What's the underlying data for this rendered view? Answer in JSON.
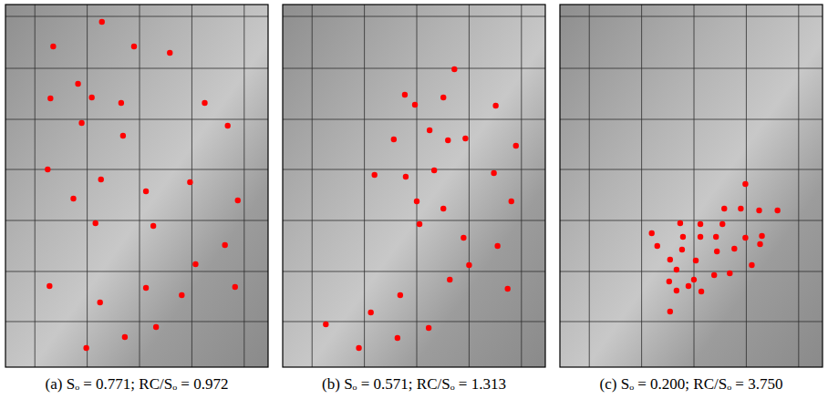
{
  "chart_data": [
    {
      "type": "scatter",
      "title": "(a) Sₒ = 0.771; RC/Sₒ = 0.972",
      "color": "#ff0000",
      "grid": true,
      "tick_labels": false,
      "xlim": [
        0,
        286
      ],
      "ylim": [
        0,
        398
      ],
      "xticks": [
        32,
        89,
        146,
        203,
        260
      ],
      "yticks": [
        13,
        70,
        126,
        181,
        237,
        293,
        348
      ],
      "x": [
        105,
        52,
        140,
        179,
        49,
        79,
        94,
        126,
        217,
        242,
        83,
        128,
        46,
        104,
        201,
        74,
        153,
        253,
        98,
        161,
        239,
        207,
        48,
        153,
        250,
        192,
        103,
        164,
        130,
        88
      ],
      "y": [
        19,
        46,
        46,
        53,
        103,
        87,
        102,
        108,
        108,
        133,
        130,
        144,
        181,
        192,
        195,
        213,
        205,
        215,
        240,
        243,
        264,
        285,
        309,
        311,
        310,
        319,
        327,
        354,
        365,
        377
      ]
    },
    {
      "type": "scatter",
      "title": "(b) Sₒ = 0.571; RC/Sₒ = 1.313",
      "color": "#ff0000",
      "grid": true,
      "tick_labels": false,
      "xlim": [
        0,
        286
      ],
      "ylim": [
        0,
        398
      ],
      "xticks": [
        32,
        89,
        146,
        203,
        260
      ],
      "yticks": [
        13,
        70,
        126,
        181,
        237,
        293,
        348
      ],
      "x": [
        187,
        133,
        144,
        175,
        232,
        160,
        121,
        180,
        199,
        254,
        100,
        134,
        165,
        230,
        146,
        175,
        249,
        149,
        197,
        234,
        203,
        182,
        245,
        128,
        96,
        159,
        47,
        125,
        83
      ],
      "y": [
        71,
        99,
        110,
        102,
        111,
        138,
        148,
        149,
        147,
        155,
        187,
        189,
        182,
        185,
        216,
        224,
        216,
        241,
        256,
        265,
        286,
        302,
        312,
        319,
        338,
        355,
        351,
        366,
        377
      ]
    },
    {
      "type": "scatter",
      "title": "(c) Sₒ = 0.200; RC/Sₒ = 3.750",
      "color": "#ff0000",
      "grid": true,
      "tick_labels": false,
      "xlim": [
        0,
        286
      ],
      "ylim": [
        0,
        398
      ],
      "xticks": [
        32,
        89,
        146,
        203,
        260
      ],
      "yticks": [
        13,
        70,
        126,
        181,
        237,
        293,
        348
      ],
      "x": [
        202,
        179,
        197,
        217,
        237,
        131,
        153,
        177,
        100,
        134,
        153,
        170,
        202,
        220,
        106,
        133,
        190,
        218,
        120,
        148,
        171,
        127,
        209,
        119,
        146,
        168,
        185,
        127,
        140,
        154,
        120
      ],
      "y": [
        197,
        224,
        224,
        226,
        226,
        240,
        241,
        241,
        251,
        255,
        255,
        255,
        256,
        254,
        265,
        269,
        268,
        263,
        280,
        281,
        271,
        291,
        286,
        304,
        302,
        297,
        295,
        314,
        309,
        315,
        337
      ]
    }
  ]
}
